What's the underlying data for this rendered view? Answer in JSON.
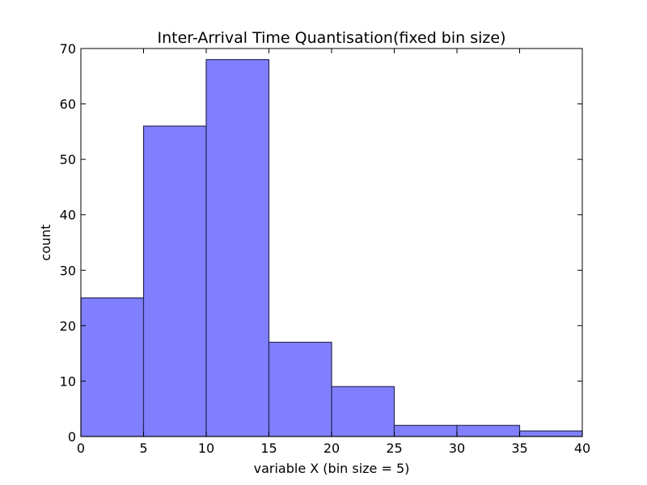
{
  "chart_data": {
    "type": "bar",
    "title": "Inter-Arrival Time Quantisation(fixed bin size)",
    "xlabel": "variable X (bin size = 5)",
    "ylabel": "count",
    "bins": [
      {
        "start": 0,
        "end": 5,
        "count": 25
      },
      {
        "start": 5,
        "end": 10,
        "count": 56
      },
      {
        "start": 10,
        "end": 15,
        "count": 68
      },
      {
        "start": 15,
        "end": 20,
        "count": 17
      },
      {
        "start": 20,
        "end": 25,
        "count": 9
      },
      {
        "start": 25,
        "end": 30,
        "count": 2
      },
      {
        "start": 30,
        "end": 35,
        "count": 2
      },
      {
        "start": 35,
        "end": 40,
        "count": 1
      }
    ],
    "xlim": [
      0,
      40
    ],
    "ylim": [
      0,
      70
    ],
    "xticks": [
      0,
      5,
      10,
      15,
      20,
      25,
      30,
      35,
      40
    ],
    "yticks": [
      0,
      10,
      20,
      30,
      40,
      50,
      60,
      70
    ],
    "bar_color": "#8080ff",
    "bar_edge_color": "#2a2a55",
    "grid": false,
    "legend": "none"
  }
}
